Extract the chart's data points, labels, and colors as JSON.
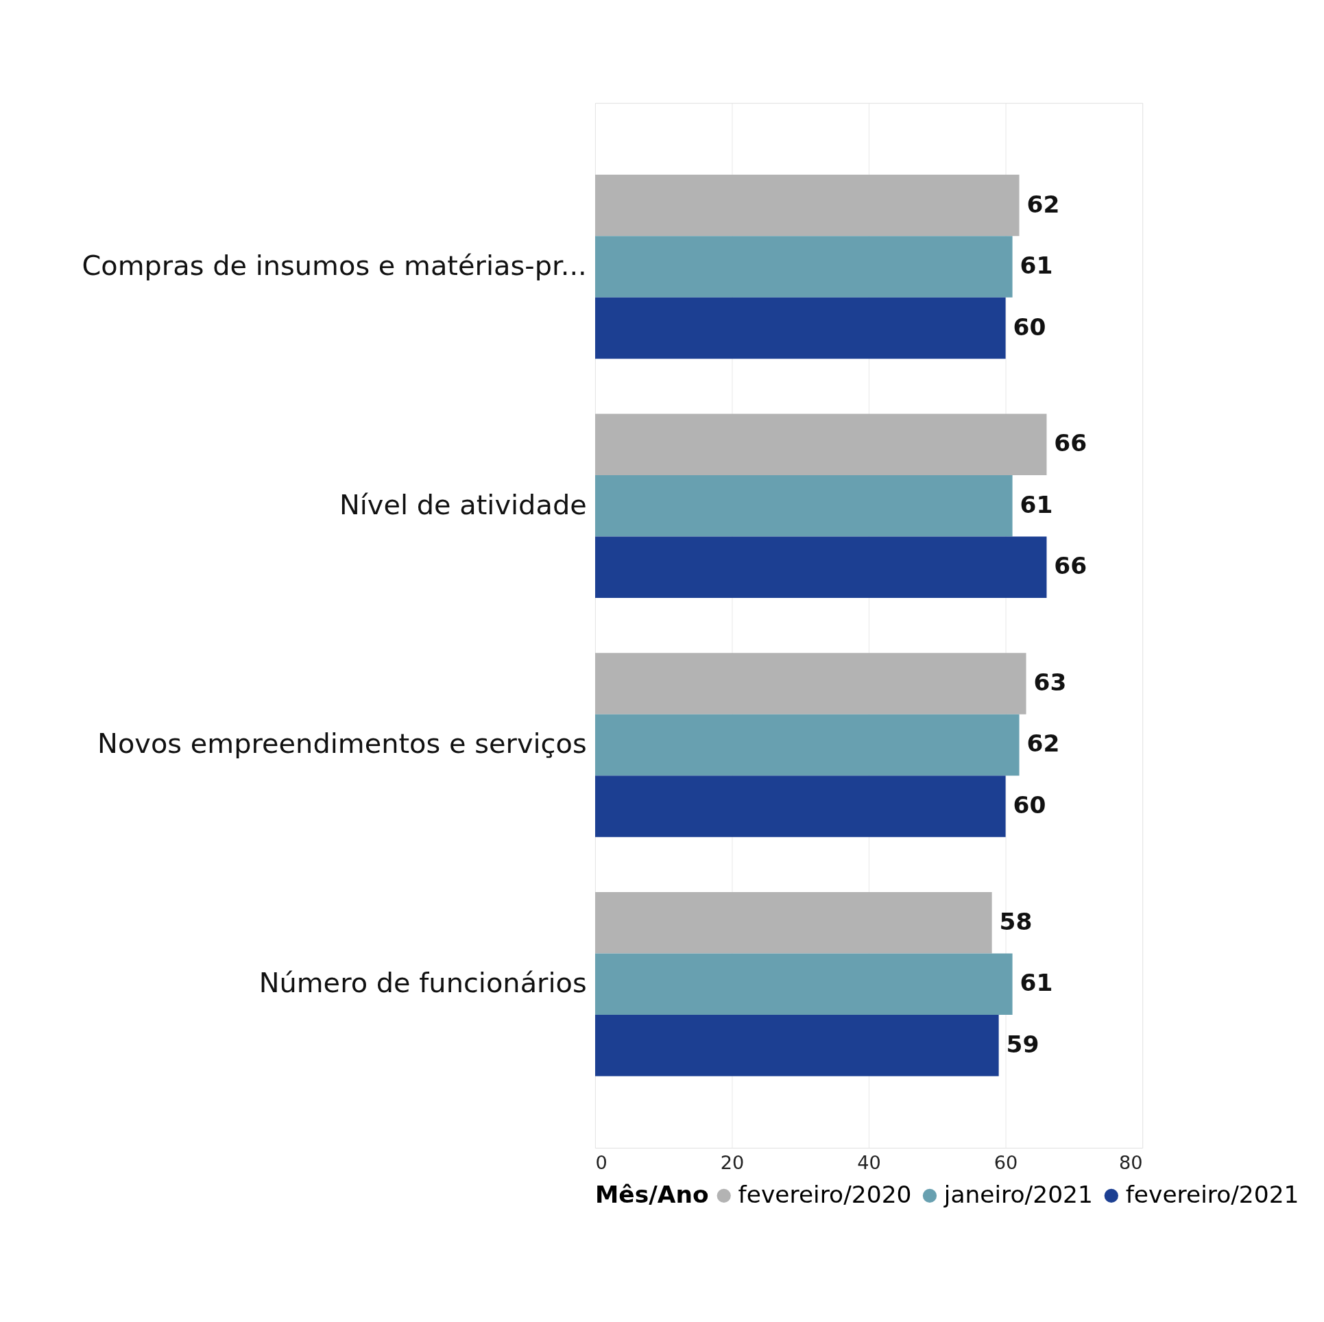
{
  "chart_data": {
    "type": "bar",
    "orientation": "horizontal",
    "categories": [
      "Compras de insumos e matérias-pr...",
      "Nível de atividade",
      "Novos empreendimentos e serviços",
      "Número de funcionários"
    ],
    "series": [
      {
        "name": "fevereiro/2020",
        "color": "#b3b3b3",
        "values": [
          62,
          66,
          63,
          58
        ]
      },
      {
        "name": "janeiro/2021",
        "color": "#68a0b0",
        "values": [
          61,
          61,
          62,
          61
        ]
      },
      {
        "name": "fevereiro/2021",
        "color": "#1c3f92",
        "values": [
          60,
          66,
          60,
          59
        ]
      }
    ],
    "legend_title": "Mês/Ano",
    "legend": "bottom",
    "data_labels": true,
    "grid": "x",
    "xlim": [
      0,
      80
    ],
    "xticks": [
      0,
      20,
      40,
      60,
      80
    ]
  }
}
